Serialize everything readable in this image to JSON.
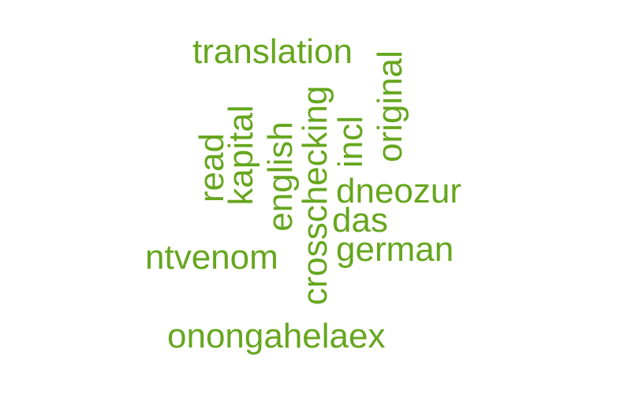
{
  "word_color": "#66a61e",
  "words": [
    {
      "text": "translation",
      "rotated": false
    },
    {
      "text": "original",
      "rotated": true
    },
    {
      "text": "crosschecking",
      "rotated": true
    },
    {
      "text": "kapital",
      "rotated": true
    },
    {
      "text": "english",
      "rotated": true
    },
    {
      "text": "read",
      "rotated": true
    },
    {
      "text": "incl",
      "rotated": true
    },
    {
      "text": "dneozur",
      "rotated": false
    },
    {
      "text": "das",
      "rotated": false
    },
    {
      "text": "german",
      "rotated": false
    },
    {
      "text": "ntvenom",
      "rotated": false
    },
    {
      "text": "onongahelaex",
      "rotated": false
    }
  ]
}
